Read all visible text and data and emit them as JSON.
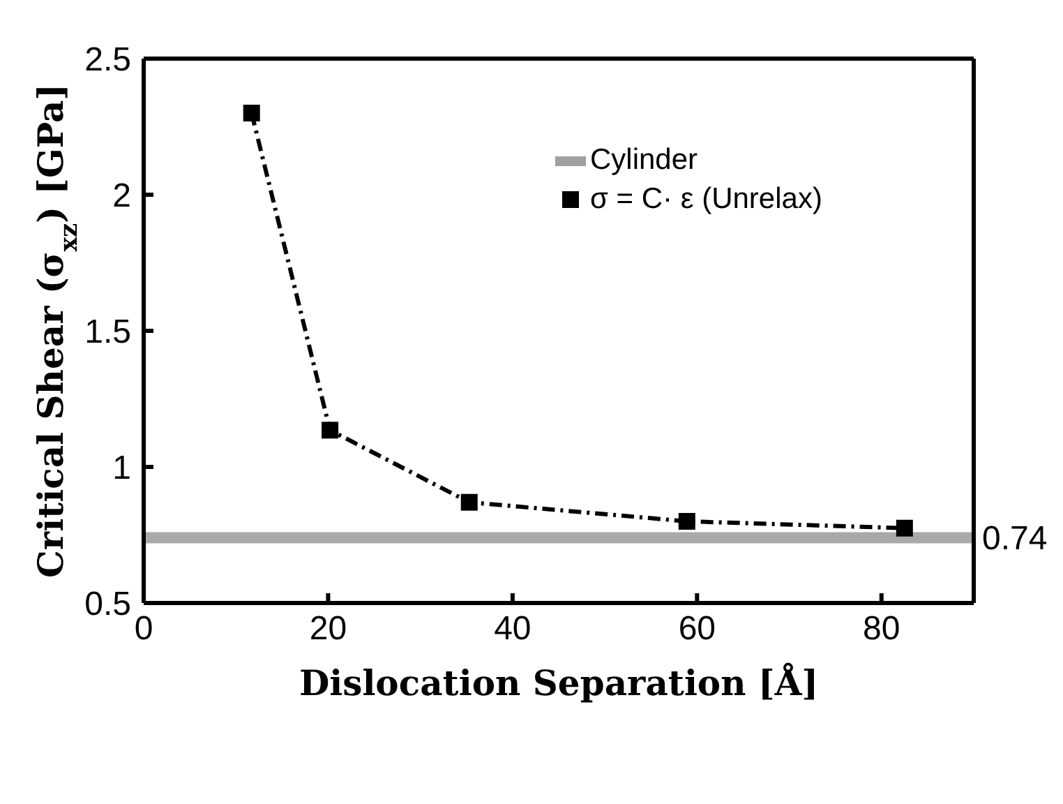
{
  "chart_data": {
    "type": "line",
    "xlabel": "Dislocation Separation [Å]",
    "ylabel": "Critical Shear (σ$_{xz}$) [GPa]",
    "xlim": [
      0,
      90
    ],
    "xticks": [
      0,
      20,
      40,
      60,
      80
    ],
    "ylim": [
      0.5,
      2.5
    ],
    "yticks": [
      0.5,
      1,
      1.5,
      2,
      2.5
    ],
    "legend": "top right",
    "series": [
      {
        "name": "Cylinder",
        "color": "#a0a0a0",
        "x": [
          0,
          90
        ],
        "values": [
          0.74,
          0.74
        ],
        "marker": "none",
        "line_style": "solid"
      },
      {
        "name": "σ = C· ε (Unrelax)",
        "color": "#000000",
        "x": [
          11.7,
          20.2,
          35.3,
          58.9,
          82.5
        ],
        "values": [
          2.3,
          1.135,
          0.87,
          0.8,
          0.775
        ],
        "marker": "square",
        "line_style": "dashdot"
      }
    ],
    "annotations": [
      {
        "text": "0.74",
        "x": 90,
        "y": 0.74
      }
    ]
  }
}
